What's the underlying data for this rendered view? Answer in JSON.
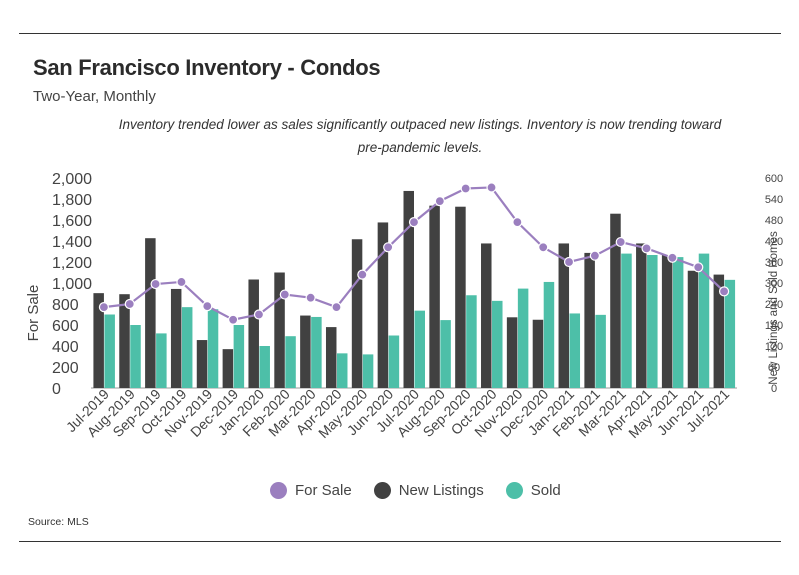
{
  "title": "San Francisco Inventory - Condos",
  "subtitle": "Two-Year, Monthly",
  "annotation": "Inventory trended lower as sales significantly outpaced new listings. Inventory is now trending toward pre-pandemic levels.",
  "source": "Source:  MLS",
  "colors": {
    "for_sale": "#9b7fbf",
    "new_listings": "#414141",
    "sold": "#4dbfa8"
  },
  "chart_data": {
    "type": "bar",
    "title": "San Francisco Inventory - Condos",
    "subtitle": "Two-Year, Monthly",
    "categories": [
      "Jul-2019",
      "Aug-2019",
      "Sep-2019",
      "Oct-2019",
      "Nov-2019",
      "Dec-2019",
      "Jan-2020",
      "Feb-2020",
      "Mar-2020",
      "Apr-2020",
      "May-2020",
      "Jun-2020",
      "Jul-2020",
      "Aug-2020",
      "Sep-2020",
      "Oct-2020",
      "Nov-2020",
      "Dec-2020",
      "Jan-2021",
      "Feb-2021",
      "Mar-2021",
      "Apr-2021",
      "May-2021",
      "Jun-2021",
      "Jul-2021"
    ],
    "ylabel_left": "For Sale",
    "ylabel_right": "New Listings and Sold Homes",
    "y_left": {
      "ticks": [
        "0",
        "200",
        "400",
        "600",
        "800",
        "1,000",
        "1,200",
        "1,400",
        "1,600",
        "1,800",
        "2,000"
      ],
      "range": [
        0,
        2000
      ]
    },
    "y_right": {
      "ticks": [
        "0",
        "60",
        "120",
        "180",
        "240",
        "300",
        "360",
        "420",
        "480",
        "540",
        "600"
      ],
      "range": [
        0,
        600
      ]
    },
    "series": [
      {
        "name": "For Sale",
        "type": "line",
        "axis": "left",
        "values": [
          770,
          800,
          990,
          1010,
          780,
          650,
          700,
          890,
          860,
          770,
          1080,
          1340,
          1580,
          1780,
          1900,
          1910,
          1580,
          1340,
          1200,
          1260,
          1390,
          1330,
          1240,
          1150,
          920
        ]
      },
      {
        "name": "New Listings",
        "type": "bar",
        "axis": "right",
        "values": [
          271,
          268,
          428,
          283,
          137,
          111,
          310,
          330,
          207,
          174,
          425,
          473,
          563,
          521,
          518,
          413,
          202,
          195,
          413,
          386,
          498,
          413,
          380,
          335,
          324
        ]
      },
      {
        "name": "Sold",
        "type": "bar",
        "axis": "right",
        "values": [
          210,
          180,
          156,
          231,
          225,
          180,
          120,
          148,
          203,
          99,
          96,
          150,
          221,
          194,
          265,
          249,
          284,
          303,
          213,
          209,
          384,
          380,
          374,
          384,
          309
        ]
      }
    ],
    "legend": [
      "For Sale",
      "New Listings",
      "Sold"
    ],
    "legend_position": "bottom",
    "grid": false
  }
}
